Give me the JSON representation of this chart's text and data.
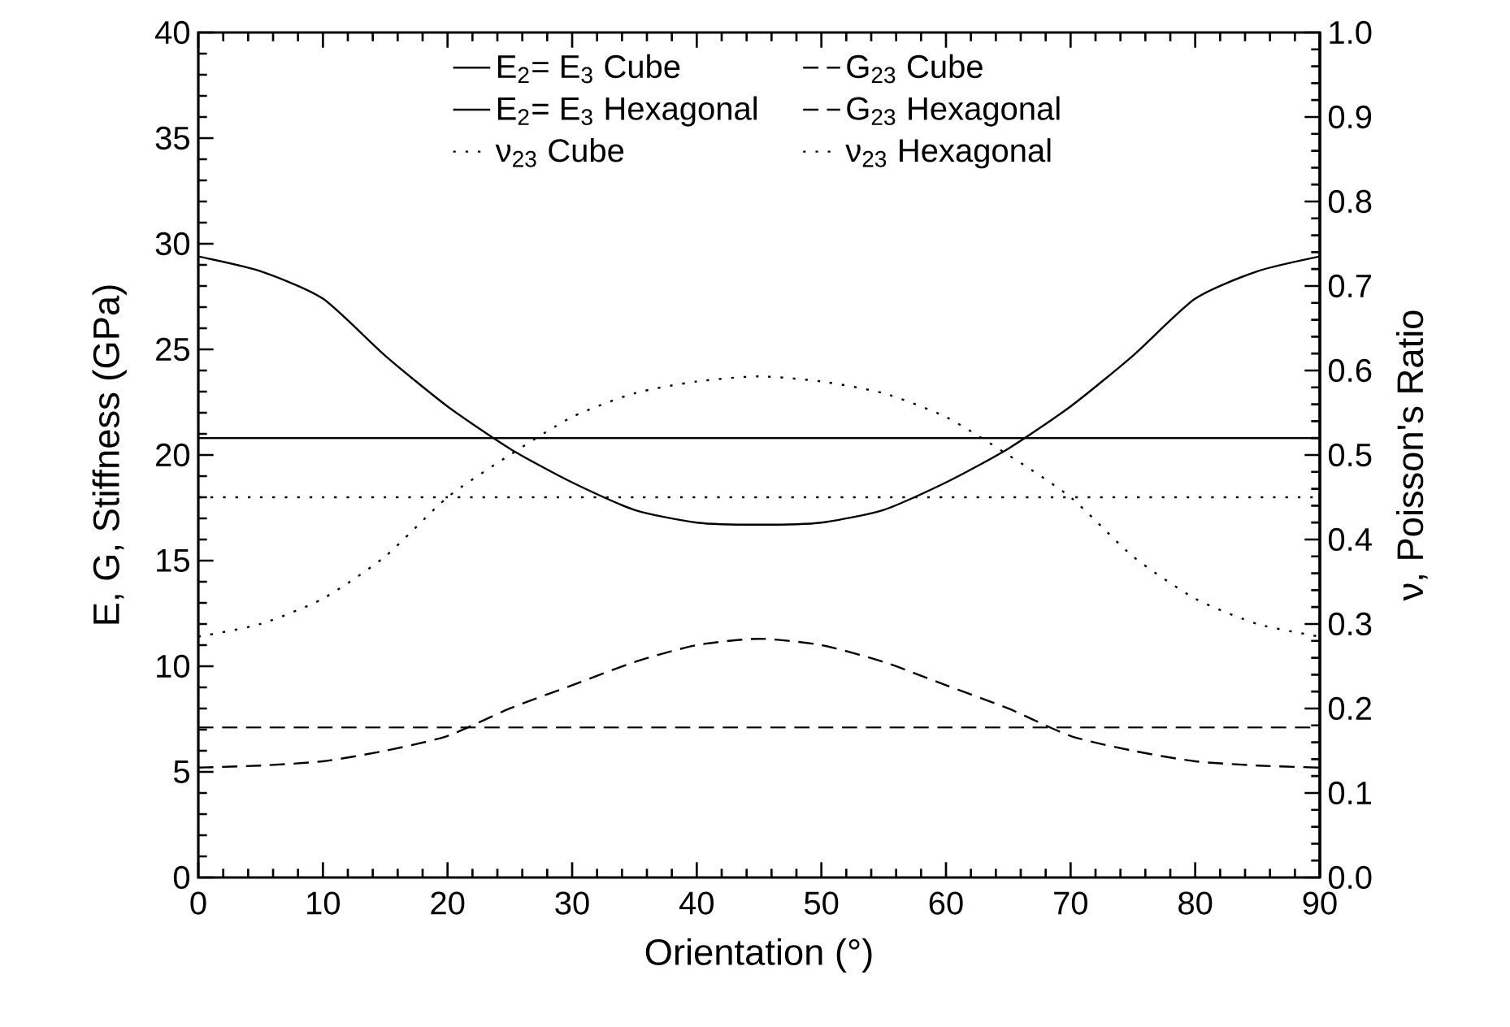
{
  "chart_data": {
    "type": "line",
    "xlabel": "Orientation (°)",
    "ylabel": "E, G, Stiffness (GPa)",
    "y2label": "ν, Poisson's Ratio",
    "x": [
      0,
      5,
      10,
      15,
      20,
      25,
      30,
      35,
      40,
      45,
      50,
      55,
      60,
      65,
      70,
      75,
      80,
      85,
      90
    ],
    "series": [
      {
        "name": "E$_{2}$= E$_{3}$ Cube",
        "color": "#000000",
        "line_style": "solid",
        "values": [
          20.8,
          20.8,
          20.8,
          20.8,
          20.8,
          20.8,
          20.8,
          20.8,
          20.8,
          20.8,
          20.8,
          20.8,
          20.8,
          20.8,
          20.8,
          20.8,
          20.8,
          20.8,
          20.8
        ]
      },
      {
        "name": "G$_{23}$ Cube",
        "color": "#000000",
        "line_style": "dashed",
        "values": [
          7.1,
          7.1,
          7.1,
          7.1,
          7.1,
          7.1,
          7.1,
          7.1,
          7.1,
          7.1,
          7.1,
          7.1,
          7.1,
          7.1,
          7.1,
          7.1,
          7.1,
          7.1,
          7.1
        ]
      },
      {
        "name": "E$_{2}$= E$_{3}$ Hexagonal",
        "color": "#000000",
        "line_style": "solid",
        "values": [
          29.4,
          28.7,
          27.4,
          24.7,
          22.3,
          20.3,
          18.7,
          17.4,
          16.8,
          16.7,
          16.8,
          17.4,
          18.7,
          20.3,
          22.3,
          24.7,
          27.4,
          28.7,
          29.4
        ]
      },
      {
        "name": "G$_{23}$ Hexagonal",
        "color": "#000000",
        "line_style": "dashed",
        "values": [
          5.2,
          5.3,
          5.5,
          6.0,
          6.7,
          8.0,
          9.1,
          10.2,
          11.0,
          11.3,
          11.0,
          10.2,
          9.1,
          8.0,
          6.7,
          6.0,
          5.5,
          5.3,
          5.2
        ]
      },
      {
        "name": "ν$_{23}$ Cube",
        "color": "#000000",
        "line_style": "dotted",
        "axis": "y2",
        "values": [
          0.45,
          0.45,
          0.45,
          0.45,
          0.45,
          0.45,
          0.45,
          0.45,
          0.45,
          0.45,
          0.45,
          0.45,
          0.45,
          0.45,
          0.45,
          0.45,
          0.45,
          0.45,
          0.45
        ]
      },
      {
        "name": "ν$_{23}$ Hexagonal",
        "color": "#000000",
        "line_style": "dotted",
        "axis": "y2",
        "values": [
          0.285,
          0.3,
          0.33,
          0.38,
          0.45,
          0.5,
          0.545,
          0.573,
          0.587,
          0.593,
          0.587,
          0.573,
          0.545,
          0.5,
          0.45,
          0.38,
          0.33,
          0.3,
          0.285
        ]
      }
    ],
    "xlim": [
      0,
      90
    ],
    "xticks": [
      0,
      10,
      20,
      30,
      40,
      50,
      60,
      70,
      80,
      90
    ],
    "ylim": [
      0,
      40
    ],
    "yticks": [
      0,
      5,
      10,
      15,
      20,
      25,
      30,
      35,
      40
    ],
    "y2lim": [
      0,
      1
    ],
    "y2ticks": [
      {
        "value": 0,
        "label": "0.0"
      },
      {
        "value": 0.1,
        "label": "0.1"
      },
      {
        "value": 0.2,
        "label": "0.2"
      },
      {
        "value": 0.3,
        "label": "0.3"
      },
      {
        "value": 0.4,
        "label": "0.4"
      },
      {
        "value": 0.5,
        "label": "0.5"
      },
      {
        "value": 0.6,
        "label": "0.6"
      },
      {
        "value": 0.7,
        "label": "0.7"
      },
      {
        "value": 0.8,
        "label": "0.8"
      },
      {
        "value": 0.9,
        "label": "0.9"
      },
      {
        "value": 1,
        "label": "1.0"
      }
    ],
    "legend": "top",
    "grid": false
  }
}
